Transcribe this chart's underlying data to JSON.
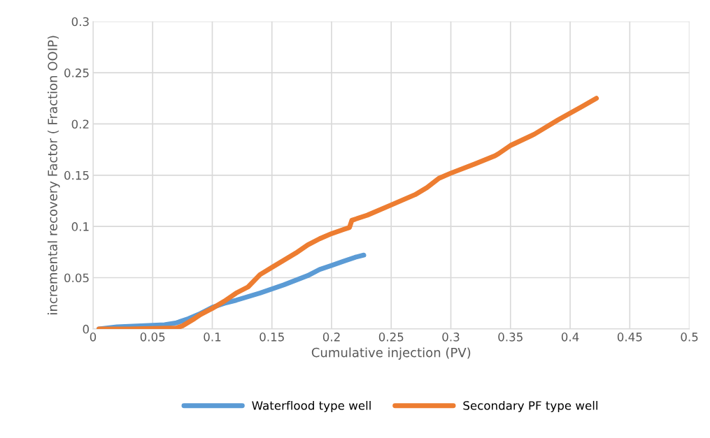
{
  "chart_data": {
    "type": "line",
    "xlabel": "Cumulative injection (PV)",
    "ylabel": "incremental recovery Factor ( Fraction OOIP)",
    "xlim": [
      0,
      0.5
    ],
    "xticks": [
      0,
      0.05,
      0.1,
      0.15,
      0.2,
      0.25,
      0.3,
      0.35,
      0.4,
      0.45,
      0.5
    ],
    "ylim": [
      0,
      0.3
    ],
    "yticks": [
      0,
      0.05,
      0.1,
      0.15,
      0.2,
      0.25,
      0.3
    ],
    "grid": true,
    "legend": "bottom",
    "marker": "none",
    "line_style": "solid",
    "series": [
      {
        "name": "Waterflood type well",
        "color": "#5b9bd5",
        "x": [
          0.005,
          0.02,
          0.04,
          0.06,
          0.07,
          0.08,
          0.09,
          0.1,
          0.11,
          0.12,
          0.14,
          0.16,
          0.18,
          0.19,
          0.2,
          0.21,
          0.22,
          0.227
        ],
        "values": [
          0,
          0.002,
          0.003,
          0.004,
          0.006,
          0.01,
          0.015,
          0.021,
          0.025,
          0.028,
          0.035,
          0.043,
          0.052,
          0.058,
          0.062,
          0.066,
          0.07,
          0.072
        ]
      },
      {
        "name": "Secondary PF type well",
        "color": "#ed7d31",
        "x": [
          0.005,
          0.03,
          0.07,
          0.075,
          0.085,
          0.09,
          0.1,
          0.11,
          0.12,
          0.13,
          0.14,
          0.15,
          0.16,
          0.17,
          0.18,
          0.19,
          0.2,
          0.21,
          0.215,
          0.217,
          0.23,
          0.25,
          0.27,
          0.28,
          0.29,
          0.3,
          0.32,
          0.337,
          0.34,
          0.35,
          0.37,
          0.39,
          0.41,
          0.422
        ],
        "values": [
          0,
          0,
          0.001,
          0.003,
          0.01,
          0.014,
          0.02,
          0.027,
          0.035,
          0.041,
          0.053,
          0.06,
          0.067,
          0.074,
          0.082,
          0.088,
          0.093,
          0.097,
          0.099,
          0.106,
          0.111,
          0.121,
          0.131,
          0.138,
          0.147,
          0.152,
          0.161,
          0.169,
          0.171,
          0.179,
          0.19,
          0.204,
          0.217,
          0.225
        ]
      }
    ]
  }
}
